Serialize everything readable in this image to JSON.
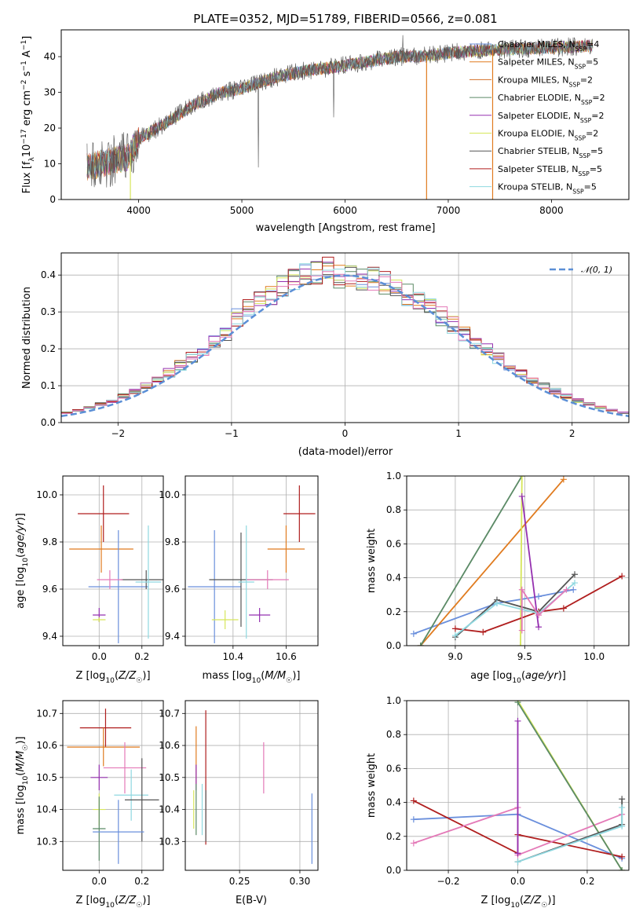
{
  "colors": {
    "Chabrier MILES": "#6a8fdc",
    "Salpeter MILES": "#e07b1f",
    "Kroupa MILES": "#d2702a",
    "Chabrier ELODIE": "#5b8a66",
    "Salpeter ELODIE": "#9530b0",
    "Kroupa ELODIE": "#d6e65a",
    "Chabrier STELIB": "#555555",
    "Salpeter STELIB": "#b01e1e",
    "Kroupa STELIB": "#8fd8e0",
    "pink": "#e47ab8",
    "gaussian": "#5b8fd6"
  },
  "chart_data": [
    {
      "id": "spectrum",
      "type": "line",
      "title": "PLATE=0352, MJD=51789, FIBERID=0566, z=0.081",
      "xlabel": "wavelength [Angstrom, rest frame]",
      "ylabel": "Flux [fλ10⁻¹⁷ erg cm⁻² s⁻¹ A⁻¹]",
      "xlim": [
        3250,
        8750
      ],
      "ylim": [
        0,
        47.5
      ],
      "xticks": [
        4000,
        5000,
        6000,
        7000,
        8000
      ],
      "yticks": [
        0,
        10,
        20,
        30,
        40
      ],
      "legend": [
        {
          "name": "Chabrier MILES",
          "nssp": "4"
        },
        {
          "name": "Salpeter MILES",
          "nssp": "5"
        },
        {
          "name": "Kroupa MILES",
          "nssp": "2"
        },
        {
          "name": "Chabrier ELODIE",
          "nssp": "2"
        },
        {
          "name": "Salpeter ELODIE",
          "nssp": "2"
        },
        {
          "name": "Kroupa ELODIE",
          "nssp": "2"
        },
        {
          "name": "Chabrier STELIB",
          "nssp": "5"
        },
        {
          "name": "Salpeter STELIB",
          "nssp": "5"
        },
        {
          "name": "Kroupa STELIB",
          "nssp": "5"
        }
      ],
      "continuum": [
        [
          3500,
          9
        ],
        [
          3900,
          12
        ],
        [
          4000,
          17
        ],
        [
          4300,
          22
        ],
        [
          4500,
          26
        ],
        [
          4800,
          30
        ],
        [
          5000,
          31
        ],
        [
          5300,
          34
        ],
        [
          5600,
          36
        ],
        [
          6000,
          37.5
        ],
        [
          6500,
          40
        ],
        [
          6700,
          40
        ],
        [
          7000,
          41
        ],
        [
          7500,
          42
        ],
        [
          8000,
          42.5
        ],
        [
          8400,
          43
        ]
      ],
      "drops": [
        [
          3920,
          0
        ],
        [
          6790,
          0
        ],
        [
          7430,
          0
        ]
      ]
    },
    {
      "id": "residuals",
      "type": "line",
      "xlabel": "(data-model)/error",
      "ylabel": "Normed distribution",
      "xlim": [
        -2.5,
        2.5
      ],
      "ylim": [
        0,
        0.46
      ],
      "xticks": [
        -2,
        -1,
        0,
        1,
        2
      ],
      "yticks": [
        0.0,
        0.1,
        0.2,
        0.3,
        0.4
      ],
      "legend": "𝒩(0, 1)"
    },
    {
      "id": "age-vs-Z",
      "type": "scatter",
      "xlabel": "Z [log₁₀(Z/Z☉)]",
      "ylabel": "age  [log₁₀(age/yr)]",
      "xlim": [
        -0.17,
        0.3
      ],
      "ylim": [
        9.36,
        10.08
      ],
      "xticks": [
        0.0,
        0.2
      ],
      "yticks": [
        9.4,
        9.6,
        9.8,
        10.0
      ],
      "points": [
        {
          "series": "Salpeter STELIB",
          "x": 0.02,
          "y": 9.92,
          "xerr": 0.12,
          "yerr": 0.12
        },
        {
          "series": "Salpeter MILES",
          "x": 0.01,
          "y": 9.77,
          "xerr": 0.15,
          "yerr": 0.1
        },
        {
          "series": "Chabrier MILES",
          "x": 0.09,
          "y": 9.61,
          "xerr": 0.14,
          "yerr": 0.24
        },
        {
          "series": "Chabrier STELIB",
          "x": 0.22,
          "y": 9.64,
          "xerr": 0.12,
          "yerr": 0.04
        },
        {
          "series": "pink",
          "x": 0.05,
          "y": 9.64,
          "xerr": 0.06,
          "yerr": 0.04
        },
        {
          "series": "Kroupa STELIB",
          "x": 0.23,
          "y": 9.63,
          "xerr": 0.06,
          "yerr": 0.24
        },
        {
          "series": "Salpeter ELODIE",
          "x": 0.0,
          "y": 9.49,
          "xerr": 0.03,
          "yerr": 0.03
        },
        {
          "series": "Kroupa ELODIE",
          "x": 0.0,
          "y": 9.47,
          "xerr": 0.03,
          "yerr": 0.01
        }
      ]
    },
    {
      "id": "age-vs-mass",
      "type": "scatter",
      "xlabel": "mass [log₁₀(M/M☉)]",
      "xlim": [
        10.22,
        10.72
      ],
      "ylim": [
        9.36,
        10.08
      ],
      "xticks": [
        10.4,
        10.6
      ],
      "yticks": [
        9.4,
        9.6,
        9.8,
        10.0
      ],
      "points": [
        {
          "series": "Salpeter STELIB",
          "x": 10.65,
          "y": 9.92,
          "xerr": 0.06,
          "yerr": 0.12
        },
        {
          "series": "Salpeter MILES",
          "x": 10.6,
          "y": 9.77,
          "xerr": 0.07,
          "yerr": 0.1
        },
        {
          "series": "Chabrier MILES",
          "x": 10.33,
          "y": 9.61,
          "xerr": 0.1,
          "yerr": 0.24
        },
        {
          "series": "Chabrier STELIB",
          "x": 10.43,
          "y": 9.64,
          "xerr": 0.12,
          "yerr": 0.2
        },
        {
          "series": "pink",
          "x": 10.53,
          "y": 9.64,
          "xerr": 0.08,
          "yerr": 0.04
        },
        {
          "series": "Kroupa STELIB",
          "x": 10.45,
          "y": 9.63,
          "xerr": 0.03,
          "yerr": 0.24
        },
        {
          "series": "Salpeter ELODIE",
          "x": 10.5,
          "y": 9.49,
          "xerr": 0.04,
          "yerr": 0.03
        },
        {
          "series": "Kroupa ELODIE",
          "x": 10.37,
          "y": 9.47,
          "xerr": 0.05,
          "yerr": 0.04
        }
      ]
    },
    {
      "id": "weight-vs-age",
      "type": "line",
      "xlabel": "age  [log₁₀(age/yr)]",
      "ylabel": "mass weight",
      "xlim": [
        8.65,
        10.25
      ],
      "ylim": [
        0,
        1
      ],
      "xticks": [
        9.0,
        9.5,
        10.0
      ],
      "yticks": [
        0.0,
        0.2,
        0.4,
        0.6,
        0.8,
        1.0
      ],
      "series": [
        {
          "name": "Chabrier MILES",
          "points": [
            [
              8.7,
              0.07
            ],
            [
              9.3,
              0.25
            ],
            [
              9.6,
              0.29
            ],
            [
              9.85,
              0.33
            ]
          ]
        },
        {
          "name": "Salpeter MILES",
          "points": [
            [
              8.75,
              0.0
            ],
            [
              9.78,
              0.98
            ]
          ]
        },
        {
          "name": "Chabrier ELODIE",
          "points": [
            [
              8.75,
              0.0
            ],
            [
              9.48,
              1.0
            ]
          ]
        },
        {
          "name": "Kroupa ELODIE",
          "points": [
            [
              9.47,
              0.0
            ],
            [
              9.48,
              1.0
            ]
          ]
        },
        {
          "name": "Salpeter ELODIE",
          "points": [
            [
              9.48,
              0.88
            ],
            [
              9.6,
              0.11
            ]
          ]
        },
        {
          "name": "Chabrier STELIB",
          "points": [
            [
              9.0,
              0.05
            ],
            [
              9.3,
              0.27
            ],
            [
              9.6,
              0.2
            ],
            [
              9.86,
              0.42
            ]
          ]
        },
        {
          "name": "Salpeter STELIB",
          "points": [
            [
              9.0,
              0.1
            ],
            [
              9.2,
              0.08
            ],
            [
              9.6,
              0.2
            ],
            [
              9.78,
              0.22
            ],
            [
              10.2,
              0.41
            ]
          ]
        },
        {
          "name": "Kroupa STELIB",
          "points": [
            [
              9.0,
              0.06
            ],
            [
              9.3,
              0.25
            ],
            [
              9.6,
              0.19
            ],
            [
              9.86,
              0.37
            ]
          ]
        },
        {
          "name": "pink",
          "points": [
            [
              9.48,
              0.09
            ],
            [
              9.48,
              0.33
            ],
            [
              9.6,
              0.18
            ],
            [
              9.8,
              0.33
            ]
          ]
        }
      ]
    },
    {
      "id": "mass-vs-Z",
      "type": "scatter",
      "xlabel": "Z [log₁₀(Z/Z☉)]",
      "ylabel": "mass [log₁₀(M/M☉)]",
      "xlim": [
        -0.17,
        0.3
      ],
      "ylim": [
        10.21,
        10.74
      ],
      "xticks": [
        0.0,
        0.2
      ],
      "yticks": [
        10.3,
        10.4,
        10.5,
        10.6,
        10.7
      ],
      "points": [
        {
          "series": "Salpeter STELIB",
          "x": 0.03,
          "y": 10.655,
          "xerr": 0.12,
          "yerr": 0.06
        },
        {
          "series": "Salpeter MILES",
          "x": 0.02,
          "y": 10.595,
          "xerr": 0.17,
          "yerr": 0.06
        },
        {
          "series": "pink",
          "x": 0.12,
          "y": 10.53,
          "xerr": 0.1,
          "yerr": 0.08
        },
        {
          "series": "Salpeter ELODIE",
          "x": 0.0,
          "y": 10.5,
          "xerr": 0.04,
          "yerr": 0.04
        },
        {
          "series": "Kroupa STELIB",
          "x": 0.15,
          "y": 10.445,
          "xerr": 0.08,
          "yerr": 0.08
        },
        {
          "series": "Chabrier STELIB",
          "x": 0.2,
          "y": 10.43,
          "xerr": 0.08,
          "yerr": 0.13
        },
        {
          "series": "Kroupa ELODIE",
          "x": 0.0,
          "y": 10.4,
          "xerr": 0.03,
          "yerr": 0.05
        },
        {
          "series": "Chabrier ELODIE",
          "x": 0.0,
          "y": 10.34,
          "xerr": 0.03,
          "yerr": 0.1
        },
        {
          "series": "Chabrier MILES",
          "x": 0.09,
          "y": 10.33,
          "xerr": 0.12,
          "yerr": 0.1
        }
      ]
    },
    {
      "id": "mass-vs-EBV",
      "type": "scatter",
      "xlabel": "E(B-V)",
      "xlim": [
        0.205,
        0.315
      ],
      "ylim": [
        10.21,
        10.74
      ],
      "xticks": [
        0.25,
        0.3
      ],
      "yticks": [
        10.3,
        10.4,
        10.5,
        10.6,
        10.7
      ],
      "points": [
        {
          "series": "Salpeter STELIB",
          "x": 0.222,
          "y": 10.5,
          "yerr": 0.21
        },
        {
          "series": "Salpeter MILES",
          "x": 0.214,
          "y": 10.57,
          "yerr": 0.09
        },
        {
          "series": "Salpeter ELODIE",
          "x": 0.214,
          "y": 10.5,
          "yerr": 0.04
        },
        {
          "series": "Kroupa ELODIE",
          "x": 0.212,
          "y": 10.4,
          "yerr": 0.06
        },
        {
          "series": "Chabrier ELODIE",
          "x": 0.214,
          "y": 10.4,
          "yerr": 0.08
        },
        {
          "series": "Kroupa STELIB",
          "x": 0.219,
          "y": 10.4,
          "yerr": 0.08
        },
        {
          "series": "Chabrier STELIB",
          "x": 0.222,
          "y": 10.38,
          "yerr": 0.08
        },
        {
          "series": "pink",
          "x": 0.27,
          "y": 10.53,
          "yerr": 0.08
        },
        {
          "series": "Chabrier MILES",
          "x": 0.31,
          "y": 10.34,
          "yerr": 0.11
        }
      ]
    },
    {
      "id": "weight-vs-Z",
      "type": "line",
      "xlabel": "Z [log₁₀(Z/Z☉)]",
      "ylabel": "mass weight",
      "xlim": [
        -0.32,
        0.32
      ],
      "ylim": [
        0,
        1
      ],
      "xticks": [
        -0.2,
        0.0,
        0.2
      ],
      "yticks": [
        0.0,
        0.2,
        0.4,
        0.6,
        0.8,
        1.0
      ],
      "series": [
        {
          "name": "Chabrier MILES",
          "points": [
            [
              -0.3,
              0.3
            ],
            [
              0.0,
              0.33
            ],
            [
              0.3,
              0.07
            ]
          ]
        },
        {
          "name": "Salpeter STELIB",
          "points": [
            [
              -0.3,
              0.41
            ],
            [
              0.0,
              0.1
            ],
            [
              0.0,
              0.21
            ],
            [
              0.3,
              0.08
            ]
          ]
        },
        {
          "name": "pink",
          "points": [
            [
              -0.3,
              0.16
            ],
            [
              0.0,
              0.37
            ],
            [
              0.0,
              0.09
            ],
            [
              0.3,
              0.33
            ]
          ]
        },
        {
          "name": "Kroupa ELODIE",
          "points": [
            [
              0.0,
              1.0
            ],
            [
              0.3,
              0.0
            ]
          ]
        },
        {
          "name": "Chabrier ELODIE",
          "points": [
            [
              0.0,
              0.99
            ],
            [
              0.3,
              0.0
            ]
          ]
        },
        {
          "name": "Salpeter ELODIE",
          "points": [
            [
              0.0,
              0.88
            ],
            [
              0.0,
              0.1
            ]
          ]
        },
        {
          "name": "Chabrier STELIB",
          "points": [
            [
              0.0,
              0.05
            ],
            [
              0.3,
              0.27
            ],
            [
              0.3,
              0.42
            ]
          ]
        },
        {
          "name": "Kroupa STELIB",
          "points": [
            [
              0.0,
              0.05
            ],
            [
              0.3,
              0.26
            ],
            [
              0.3,
              0.37
            ]
          ]
        }
      ]
    }
  ]
}
